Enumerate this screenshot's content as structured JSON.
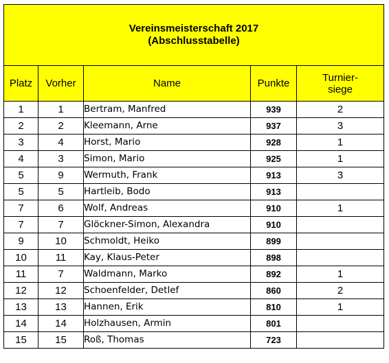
{
  "title": {
    "line1": "Vereinsmeisterschaft 2017",
    "line2": "(Abschlusstabelle)"
  },
  "headers": {
    "platz": "Platz",
    "vorher": "Vorher",
    "name": "Name",
    "punkte": "Punkte",
    "turnier_line1": "Turnier-",
    "turnier_line2": "siege"
  },
  "colors": {
    "header_background": "#ffff00",
    "border": "#000000"
  },
  "rows": [
    {
      "platz": "1",
      "vorher": "1",
      "name": "Bertram, Manfred",
      "punkte": "939",
      "siege": "2"
    },
    {
      "platz": "2",
      "vorher": "2",
      "name": "Kleemann, Arne",
      "punkte": "937",
      "siege": "3"
    },
    {
      "platz": "3",
      "vorher": "4",
      "name": "Horst, Mario",
      "punkte": "928",
      "siege": "1"
    },
    {
      "platz": "4",
      "vorher": "3",
      "name": "Simon, Mario",
      "punkte": "925",
      "siege": "1"
    },
    {
      "platz": "5",
      "vorher": "9",
      "name": "Wermuth, Frank",
      "punkte": "913",
      "siege": "3"
    },
    {
      "platz": "5",
      "vorher": "5",
      "name": "Hartleib, Bodo",
      "punkte": "913",
      "siege": ""
    },
    {
      "platz": "7",
      "vorher": "6",
      "name": "Wolf, Andreas",
      "punkte": "910",
      "siege": "1"
    },
    {
      "platz": "7",
      "vorher": "7",
      "name": "Glöckner-Simon, Alexandra",
      "punkte": "910",
      "siege": ""
    },
    {
      "platz": "9",
      "vorher": "10",
      "name": "Schmoldt, Heiko",
      "punkte": "899",
      "siege": ""
    },
    {
      "platz": "10",
      "vorher": "11",
      "name": "Kay, Klaus-Peter",
      "punkte": "898",
      "siege": ""
    },
    {
      "platz": "11",
      "vorher": "7",
      "name": "Waldmann, Marko",
      "punkte": "892",
      "siege": "1"
    },
    {
      "platz": "12",
      "vorher": "12",
      "name": "Schoenfelder, Detlef",
      "punkte": "860",
      "siege": "2"
    },
    {
      "platz": "13",
      "vorher": "13",
      "name": "Hannen, Erik",
      "punkte": "810",
      "siege": "1"
    },
    {
      "platz": "14",
      "vorher": "14",
      "name": "Holzhausen, Armin",
      "punkte": "801",
      "siege": ""
    },
    {
      "platz": "15",
      "vorher": "15",
      "name": "Roß, Thomas",
      "punkte": "723",
      "siege": ""
    }
  ]
}
